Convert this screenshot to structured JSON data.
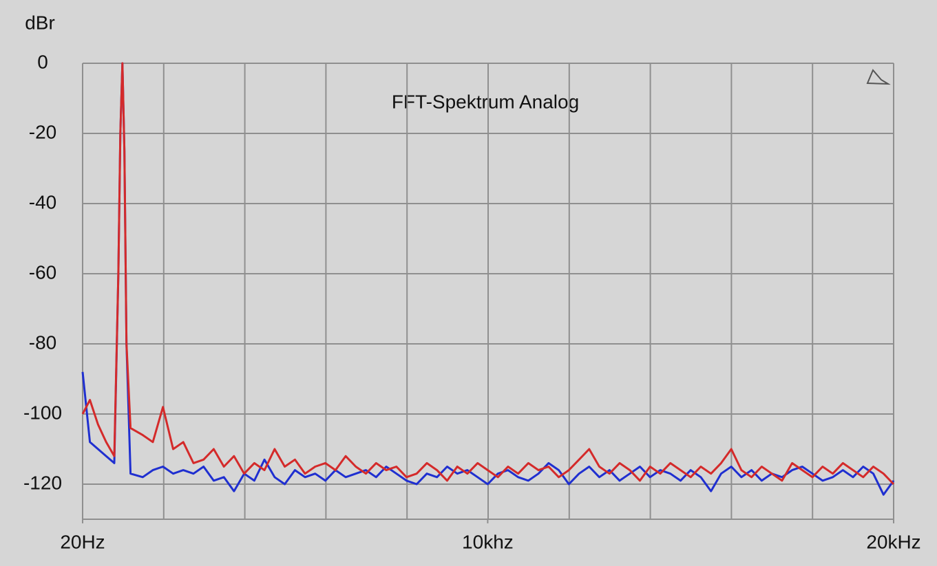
{
  "chart_data": {
    "type": "line",
    "title": "FFT-Spektrum Analog",
    "y_label": "dBr",
    "xlim": [
      20,
      20000
    ],
    "xticks": [
      {
        "value": 20,
        "label": "20Hz"
      },
      {
        "value": 10000,
        "label": "10khz"
      },
      {
        "value": 20000,
        "label": "20kHz"
      }
    ],
    "x_grid_divisions": 10,
    "ylim": [
      -130,
      0
    ],
    "yticks": [
      0,
      -20,
      -40,
      -60,
      -80,
      -100,
      -120
    ],
    "grid": true,
    "x": [
      20,
      200,
      400,
      600,
      800,
      900,
      950,
      1000,
      1050,
      1100,
      1200,
      1500,
      1750,
      2000,
      2250,
      2500,
      2750,
      3000,
      3250,
      3500,
      3750,
      4000,
      4250,
      4500,
      4750,
      5000,
      5250,
      5500,
      5750,
      6000,
      6250,
      6500,
      6750,
      7000,
      7250,
      7500,
      7750,
      8000,
      8250,
      8500,
      8750,
      9000,
      9250,
      9500,
      9750,
      10000,
      10250,
      10500,
      10750,
      11000,
      11250,
      11500,
      11750,
      12000,
      12250,
      12500,
      12750,
      13000,
      13250,
      13500,
      13750,
      14000,
      14250,
      14500,
      14750,
      15000,
      15250,
      15500,
      15750,
      16000,
      16250,
      16500,
      16750,
      17000,
      17250,
      17500,
      17750,
      18000,
      18250,
      18500,
      18750,
      19000,
      19250,
      19500,
      19750,
      20000
    ],
    "series": [
      {
        "color": "#1f2fd0",
        "values": [
          -88,
          -108,
          -110,
          -112,
          -114,
          -60,
          -20,
          0,
          -25,
          -80,
          -117,
          -118,
          -116,
          -115,
          -117,
          -116,
          -117,
          -115,
          -119,
          -118,
          -122,
          -117,
          -119,
          -113,
          -118,
          -120,
          -116,
          -118,
          -117,
          -119,
          -116,
          -118,
          -117,
          -116,
          -118,
          -115,
          -117,
          -119,
          -120,
          -117,
          -118,
          -115,
          -117,
          -116,
          -118,
          -120,
          -117,
          -116,
          -118,
          -119,
          -117,
          -114,
          -116,
          -120,
          -117,
          -115,
          -118,
          -116,
          -119,
          -117,
          -115,
          -118,
          -116,
          -117,
          -119,
          -116,
          -118,
          -122,
          -117,
          -115,
          -118,
          -116,
          -119,
          -117,
          -118,
          -116,
          -115,
          -117,
          -119,
          -118,
          -116,
          -118,
          -115,
          -117,
          -123,
          -119
        ]
      },
      {
        "color": "#d42a2a",
        "values": [
          -100,
          -96,
          -103,
          -108,
          -112,
          -60,
          -20,
          0,
          -25,
          -80,
          -104,
          -106,
          -108,
          -98,
          -110,
          -108,
          -114,
          -113,
          -110,
          -115,
          -112,
          -117,
          -114,
          -116,
          -110,
          -115,
          -113,
          -117,
          -115,
          -114,
          -116,
          -112,
          -115,
          -117,
          -114,
          -116,
          -115,
          -118,
          -117,
          -114,
          -116,
          -119,
          -115,
          -117,
          -114,
          -116,
          -118,
          -115,
          -117,
          -114,
          -116,
          -115,
          -118,
          -116,
          -113,
          -110,
          -115,
          -117,
          -114,
          -116,
          -119,
          -115,
          -117,
          -114,
          -116,
          -118,
          -115,
          -117,
          -114,
          -110,
          -116,
          -118,
          -115,
          -117,
          -119,
          -114,
          -116,
          -118,
          -115,
          -117,
          -114,
          -116,
          -118,
          -115,
          -117,
          -120
        ]
      }
    ]
  }
}
